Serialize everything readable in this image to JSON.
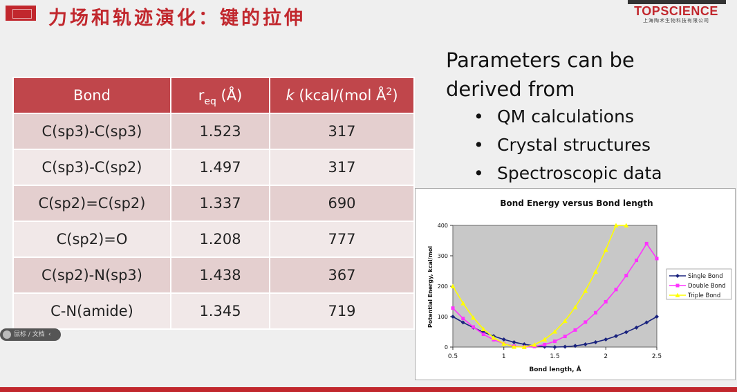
{
  "header": {
    "title": "力场和轨迹演化：键的拉伸",
    "logo_brand": "TOPSCIENCE",
    "logo_sub": "上海陶术生物科技有限公司"
  },
  "table": {
    "headers": {
      "bond": "Bond",
      "req_main": "r",
      "req_sub": "eq",
      "req_unit": " (Å)",
      "k_italic": "k",
      "k_unit": " (kcal/(mol Å",
      "k_sup": "2",
      "k_close": ")"
    },
    "rows": [
      {
        "bond": "C(sp3)-C(sp3)",
        "req": "1.523",
        "k": "317"
      },
      {
        "bond": "C(sp3)-C(sp2)",
        "req": "1.497",
        "k": "317"
      },
      {
        "bond": "C(sp2)=C(sp2)",
        "req": "1.337",
        "k": "690"
      },
      {
        "bond": "C(sp2)=O",
        "req": "1.208",
        "k": "777"
      },
      {
        "bond": "C(sp2)-N(sp3)",
        "req": "1.438",
        "k": "367"
      },
      {
        "bond": "C-N(amide)",
        "req": "1.345",
        "k": "719"
      }
    ]
  },
  "params": {
    "line1": "Parameters can be",
    "line2": "derived from",
    "bullets": [
      "QM calculations",
      "Crystal structures",
      "Spectroscopic data"
    ],
    "bullet_glyph": "•"
  },
  "chart_data": {
    "type": "line",
    "title": "Bond Energy versus Bond length",
    "xlabel": "Bond length, Å",
    "ylabel": "Potential Energy, kcal/mol",
    "xlim": [
      0.5,
      2.5
    ],
    "ylim": [
      0,
      400
    ],
    "xticks": [
      "0.5",
      "1",
      "1.5",
      "2",
      "2.5"
    ],
    "yticks": [
      "0",
      "100",
      "200",
      "300",
      "400"
    ],
    "legend_position": "right",
    "grid": false,
    "plot_background": "#c8c8c8",
    "series": [
      {
        "name": "Single Bond",
        "color": "#1a237e",
        "marker": "diamond",
        "x": [
          0.5,
          0.6,
          0.7,
          0.8,
          0.9,
          1.0,
          1.1,
          1.2,
          1.3,
          1.4,
          1.5,
          1.6,
          1.7,
          1.8,
          1.9,
          2.0,
          2.1,
          2.2,
          2.3,
          2.4,
          2.5
        ],
        "y": [
          100,
          81,
          64,
          49,
          36,
          25,
          16,
          9,
          4,
          1,
          0,
          1,
          4,
          9,
          16,
          25,
          36,
          49,
          64,
          81,
          100
        ]
      },
      {
        "name": "Double Bond",
        "color": "#ff33ff",
        "marker": "square",
        "x": [
          0.5,
          0.6,
          0.7,
          0.8,
          0.9,
          1.0,
          1.1,
          1.2,
          1.3,
          1.4,
          1.5,
          1.6,
          1.7,
          1.8,
          1.9,
          2.0,
          2.1,
          2.2,
          2.3,
          2.4,
          2.5
        ],
        "y": [
          128,
          94,
          66,
          42,
          24,
          11,
          3,
          0,
          2,
          8,
          19,
          35,
          56,
          82,
          113,
          149,
          189,
          235,
          285,
          340,
          291
        ]
      },
      {
        "name": "Triple Bond",
        "color": "#ffff00",
        "marker": "triangle",
        "x": [
          0.5,
          0.6,
          0.7,
          0.8,
          0.9,
          1.0,
          1.1,
          1.2,
          1.3,
          1.4,
          1.5,
          1.6,
          1.7,
          1.8,
          1.9,
          2.0,
          2.1,
          2.2
        ],
        "y": [
          200,
          144,
          97,
          59,
          31,
          11,
          1,
          0,
          8,
          25,
          51,
          86,
          131,
          185,
          248,
          320,
          400,
          400
        ]
      }
    ]
  },
  "overlay": {
    "pill_label": "鼠标 / 文档",
    "pill_chevron": "‹",
    "colors": {
      "accent": "#c1272d",
      "table_header": "#c0464b",
      "row_odd": "#e4cfcf",
      "row_even": "#f1e8e8"
    }
  }
}
